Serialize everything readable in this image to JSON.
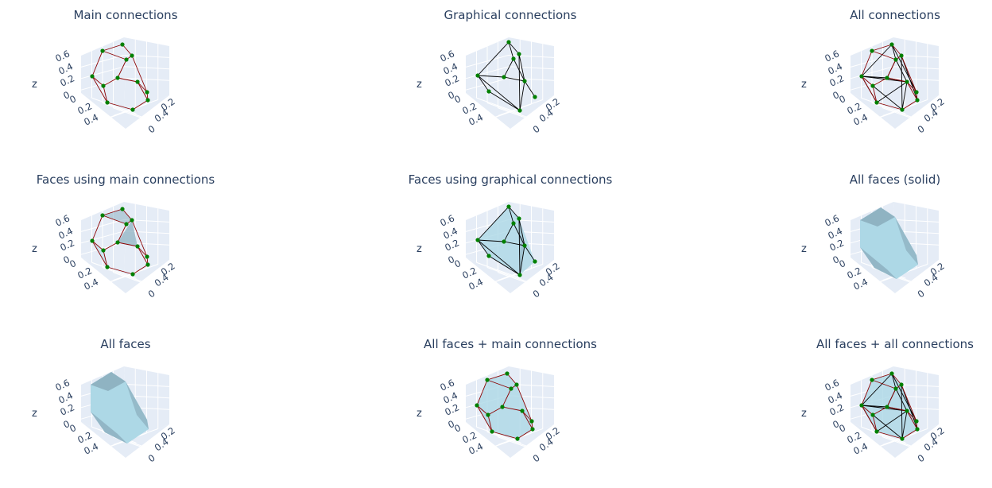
{
  "chart_data": [
    {
      "type": "mesh3d",
      "title": "Main connections",
      "zlabel": "z",
      "z_ticks": [
        "0.6",
        "0.4",
        "0.2",
        "0"
      ],
      "y_ticks": [
        "0",
        "0.2",
        "0.4"
      ],
      "x_ticks": [
        "0.2",
        "0.4",
        "0"
      ],
      "show_main": true,
      "show_graphical": false,
      "faces": "none"
    },
    {
      "type": "mesh3d",
      "title": "Graphical connections",
      "zlabel": "z",
      "z_ticks": [
        "0.6",
        "0.4",
        "0.2",
        "0"
      ],
      "y_ticks": [
        "0",
        "0.2",
        "0.4"
      ],
      "x_ticks": [
        "0.2",
        "0.4",
        "0"
      ],
      "show_main": false,
      "show_graphical": true,
      "faces": "none"
    },
    {
      "type": "mesh3d",
      "title": "All connections",
      "zlabel": "z",
      "z_ticks": [
        "0.6",
        "0.4",
        "0.2",
        "0"
      ],
      "y_ticks": [
        "0",
        "0.2",
        "0.4"
      ],
      "x_ticks": [
        "0.2",
        "0.4",
        "0"
      ],
      "show_main": true,
      "show_graphical": true,
      "faces": "none"
    },
    {
      "type": "mesh3d",
      "title": "Faces using main connections",
      "zlabel": "z",
      "z_ticks": [
        "0.6",
        "0.4",
        "0.2",
        "0"
      ],
      "y_ticks": [
        "0",
        "0.2",
        "0.4"
      ],
      "x_ticks": [
        "0.2",
        "0.4",
        "0"
      ],
      "show_main": true,
      "show_graphical": false,
      "faces": "main"
    },
    {
      "type": "mesh3d",
      "title": "Faces using graphical connections",
      "zlabel": "z",
      "z_ticks": [
        "0.6",
        "0.4",
        "0.2",
        "0"
      ],
      "y_ticks": [
        "0",
        "0.2",
        "0.4"
      ],
      "x_ticks": [
        "0.2",
        "0.4",
        "0"
      ],
      "show_main": false,
      "show_graphical": true,
      "faces": "graphical"
    },
    {
      "type": "mesh3d",
      "title": "All faces (solid)",
      "zlabel": "z",
      "z_ticks": [
        "0.6",
        "0.4",
        "0.2",
        "0"
      ],
      "y_ticks": [
        "0",
        "0.2",
        "0.4"
      ],
      "x_ticks": [
        "0.2",
        "0.4",
        "0"
      ],
      "show_main": false,
      "show_graphical": false,
      "faces": "solid"
    },
    {
      "type": "mesh3d",
      "title": "All faces",
      "zlabel": "z",
      "z_ticks": [
        "0.6",
        "0.4",
        "0.2",
        "0"
      ],
      "y_ticks": [
        "0",
        "0.2",
        "0.4"
      ],
      "x_ticks": [
        "0.2",
        "0.4",
        "0"
      ],
      "show_main": false,
      "show_graphical": false,
      "faces": "solid"
    },
    {
      "type": "mesh3d",
      "title": "All faces + main connections",
      "zlabel": "z",
      "z_ticks": [
        "0.6",
        "0.4",
        "0.2",
        "0"
      ],
      "y_ticks": [
        "0",
        "0.2",
        "0.4"
      ],
      "x_ticks": [
        "0.2",
        "0.4",
        "0"
      ],
      "show_main": true,
      "show_graphical": false,
      "faces": "translucent"
    },
    {
      "type": "mesh3d",
      "title": "All faces + all connections",
      "zlabel": "z",
      "z_ticks": [
        "0.6",
        "0.4",
        "0.2",
        "0"
      ],
      "y_ticks": [
        "0",
        "0.2",
        "0.4"
      ],
      "x_ticks": [
        "0.2",
        "0.4",
        "0"
      ],
      "show_main": true,
      "show_graphical": true,
      "faces": "translucent"
    }
  ],
  "colors": {
    "scene_background": "#e5ecf6",
    "grid": "#ffffff",
    "text": "#2a3f5f",
    "vertex": "#008000",
    "main_connection": "#8b0000",
    "graphical_connection": "#000000",
    "face_fill": "#add8e6",
    "face_shadow": "#8fb3c2"
  }
}
